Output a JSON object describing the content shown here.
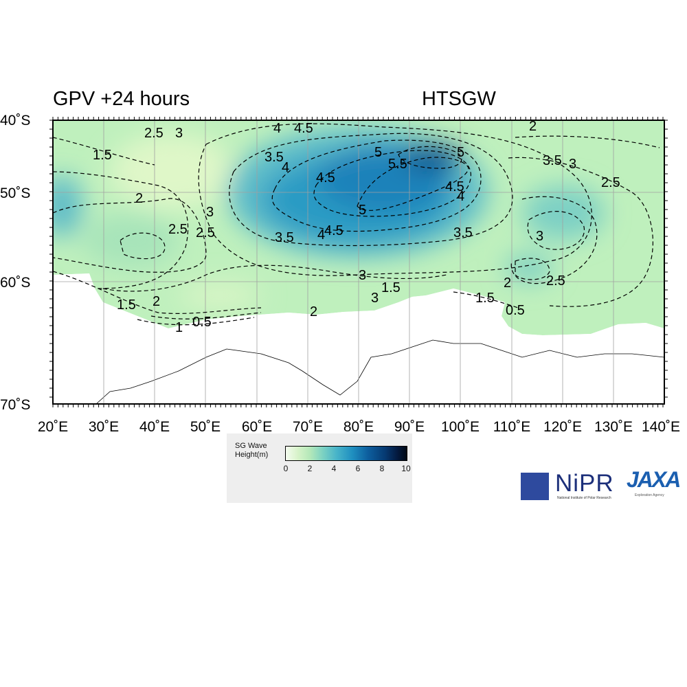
{
  "titles": {
    "left": "GPV +24 hours",
    "right": "HTSGW"
  },
  "axes": {
    "lat_labels": [
      "40˚S",
      "50˚S",
      "60˚S",
      "70˚S"
    ],
    "lon_labels": [
      "20˚E",
      "30˚E",
      "40˚E",
      "50˚E",
      "60˚E",
      "70˚E",
      "80˚E",
      "90˚E",
      "100˚E",
      "110˚E",
      "120˚E",
      "130˚E",
      "140˚E"
    ]
  },
  "contour_labels": [
    "2.5",
    "3",
    "4",
    "4.5",
    "1.5",
    "3.5",
    "4",
    "4.5",
    "5",
    "5.5",
    "5",
    "3.5",
    "3",
    "2",
    "2.5",
    "2",
    "3",
    "2.5",
    "2.5",
    "3.5",
    "4.5",
    "4",
    "5",
    "4.5",
    "4",
    "3.5",
    "3",
    "3",
    "2.5",
    "3",
    "1.5",
    "2",
    "1",
    "0.5",
    "1.5",
    "2",
    "0.5",
    "2",
    "1.5"
  ],
  "legend": {
    "title_line1": "SG Wave",
    "title_line2": "Height(m)",
    "ticks": [
      "0",
      "2",
      "4",
      "6",
      "8",
      "10"
    ]
  },
  "logos": {
    "nipr": "NiPR",
    "nipr_sub": "National Institute of Polar Research",
    "jaxa": "JAXA",
    "jaxa_sub": "Exploration Agency"
  },
  "colors": {
    "ocean_low": "#c9f1c2",
    "ocean_mid": "#5bbfc8",
    "ocean_high": "#0a4f8f",
    "land": "#ffffff"
  }
}
